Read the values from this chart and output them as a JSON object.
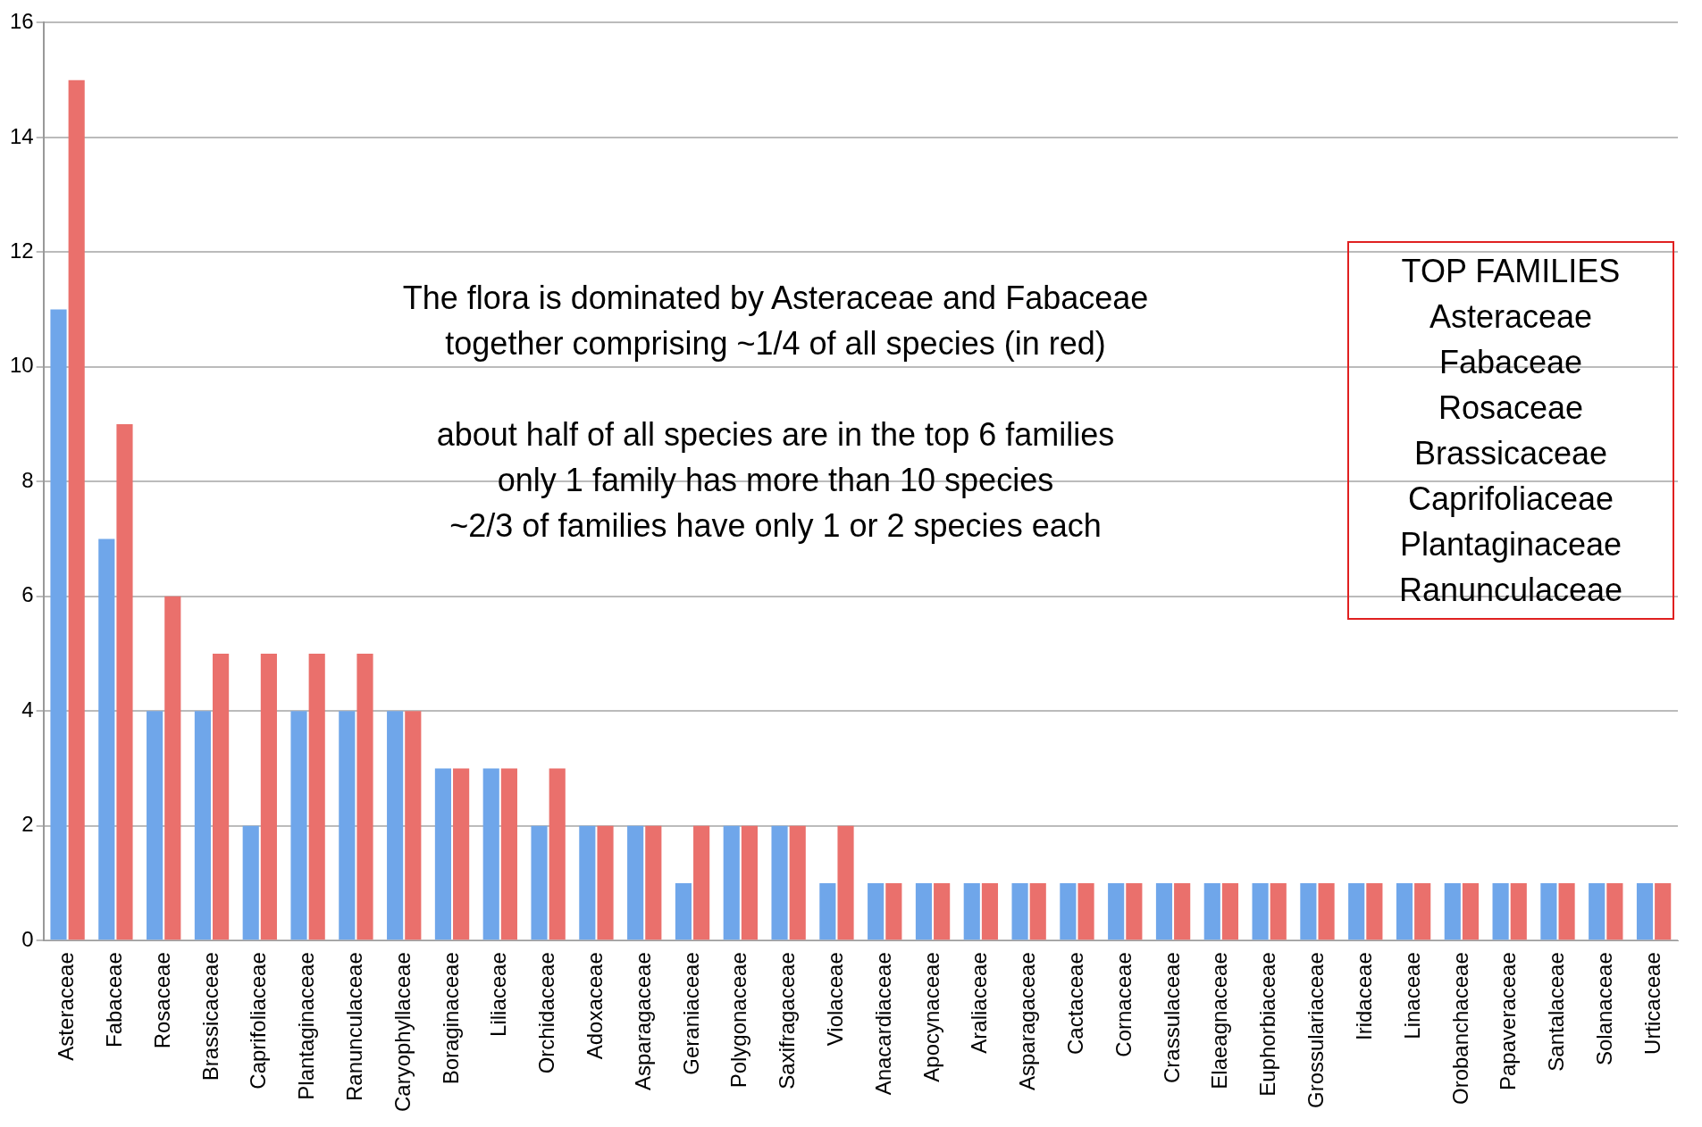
{
  "chart_data": {
    "type": "bar",
    "categories": [
      "Asteraceae",
      "Fabaceae",
      "Rosaceae",
      "Brassicaceae",
      "Caprifoliaceae",
      "Plantaginaceae",
      "Ranunculaceae",
      "Caryophyllaceae",
      "Boraginaceae",
      "Liliaceae",
      "Orchidaceae",
      "Adoxaceae",
      "Asparagaceae",
      "Geraniaceae",
      "Polygonaceae",
      "Saxifragaceae",
      "Violaceae",
      "Anacardiaceae",
      "Apocynaceae",
      "Araliaceae",
      "Asparagaceae",
      "Cactaceae",
      "Cornaceae",
      "Crassulaceae",
      "Elaeagnaceae",
      "Euphorbiaceae",
      "Grossulariaceae",
      "Iridaceae",
      "Linaceae",
      "Orobanchaceae",
      "Papaveraceae",
      "Santalaceae",
      "Solanaceae",
      "Urticaceae"
    ],
    "series": [
      {
        "color": "#6fa6ea",
        "values": [
          11,
          7,
          4,
          4,
          2,
          4,
          4,
          4,
          3,
          3,
          2,
          2,
          2,
          1,
          2,
          2,
          1,
          1,
          1,
          1,
          1,
          1,
          1,
          1,
          1,
          1,
          1,
          1,
          1,
          1,
          1,
          1,
          1,
          1
        ]
      },
      {
        "color": "#ea706c",
        "values": [
          15,
          9,
          6,
          5,
          5,
          5,
          5,
          4,
          3,
          3,
          3,
          2,
          2,
          2,
          2,
          2,
          2,
          1,
          1,
          1,
          1,
          1,
          1,
          1,
          1,
          1,
          1,
          1,
          1,
          1,
          1,
          1,
          1,
          1
        ]
      }
    ],
    "ylim": [
      0,
      16
    ],
    "yticks": [
      0,
      2,
      4,
      6,
      8,
      10,
      12,
      14,
      16
    ],
    "grid": "y",
    "annotations": [
      "The flora is dominated by Asteraceae and Fabaceae\ntogether comprising ~1/4 of all species (in red)\n\nabout half of all species are in the top 6 families\nonly 1 family has more than 10 species\n~2/3 of families have only 1 or 2 species each",
      "TOP FAMILIES\nAsteraceae\nFabaceae\nRosaceae\nBrassicaceae\nCaprifoliaceae\nPlantaginaceae\nRanunculaceae"
    ]
  }
}
